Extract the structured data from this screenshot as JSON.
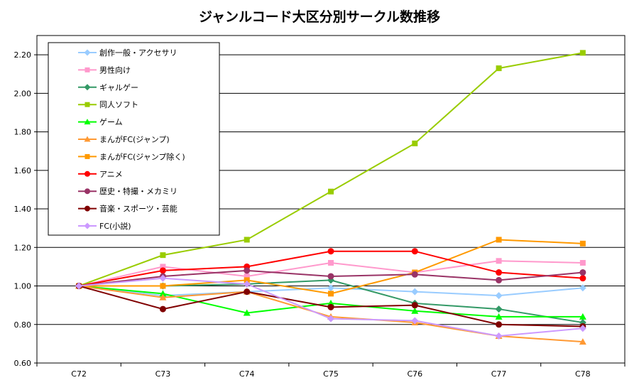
{
  "chart_data": {
    "type": "line",
    "title": "ジャンルコード大区分別サークル数推移",
    "xlabel": "",
    "ylabel": "",
    "categories": [
      "C72",
      "C73",
      "C74",
      "C75",
      "C76",
      "C77",
      "C78"
    ],
    "ylim": [
      0.6,
      2.3
    ],
    "yticks": [
      "0.60",
      "0.80",
      "1.00",
      "1.20",
      "1.40",
      "1.60",
      "1.80",
      "2.00",
      "2.20"
    ],
    "ytick_values": [
      0.6,
      0.8,
      1.0,
      1.2,
      1.4,
      1.6,
      1.8,
      2.0,
      2.2
    ],
    "grid": "horizontal",
    "legend_position": "top-left",
    "series": [
      {
        "name": "創作一般・アクセサリ",
        "color": "#99ccff",
        "marker": "diamond",
        "values": [
          1.0,
          0.95,
          0.97,
          0.99,
          0.97,
          0.95,
          0.99
        ]
      },
      {
        "name": "男性向け",
        "color": "#ff99cc",
        "marker": "square",
        "values": [
          1.0,
          1.1,
          1.05,
          1.12,
          1.07,
          1.13,
          1.12
        ]
      },
      {
        "name": "ギャルゲー",
        "color": "#339966",
        "marker": "diamond",
        "values": [
          1.0,
          1.0,
          1.01,
          1.03,
          0.91,
          0.88,
          0.81
        ]
      },
      {
        "name": "同人ソフト",
        "color": "#99cc00",
        "marker": "square",
        "values": [
          1.0,
          1.16,
          1.24,
          1.49,
          1.74,
          2.13,
          2.21
        ]
      },
      {
        "name": "ゲーム",
        "color": "#00ff00",
        "marker": "triangle",
        "values": [
          1.0,
          0.96,
          0.86,
          0.91,
          0.87,
          0.84,
          0.84
        ]
      },
      {
        "name": "まんがFC(ジャンプ)",
        "color": "#ff9933",
        "marker": "triangle",
        "values": [
          1.0,
          0.94,
          0.97,
          0.84,
          0.81,
          0.74,
          0.71
        ]
      },
      {
        "name": "まんがFC(ジャンプ除く)",
        "color": "#ff9900",
        "marker": "square",
        "values": [
          1.0,
          1.0,
          1.03,
          0.96,
          1.07,
          1.24,
          1.22
        ]
      },
      {
        "name": "アニメ",
        "color": "#ff0000",
        "marker": "circle",
        "values": [
          1.0,
          1.08,
          1.1,
          1.18,
          1.18,
          1.07,
          1.04
        ]
      },
      {
        "name": "歴史・特撮・メカミリ",
        "color": "#993366",
        "marker": "circle",
        "values": [
          1.0,
          1.05,
          1.08,
          1.05,
          1.06,
          1.03,
          1.07
        ]
      },
      {
        "name": "音楽・スポーツ・芸能",
        "color": "#800000",
        "marker": "circle",
        "values": [
          1.0,
          0.88,
          0.97,
          0.89,
          0.9,
          0.8,
          0.79
        ]
      },
      {
        "name": "FC(小説)",
        "color": "#cc99ff",
        "marker": "diamond",
        "values": [
          1.0,
          1.04,
          1.01,
          0.83,
          0.82,
          0.74,
          0.78
        ]
      }
    ]
  }
}
